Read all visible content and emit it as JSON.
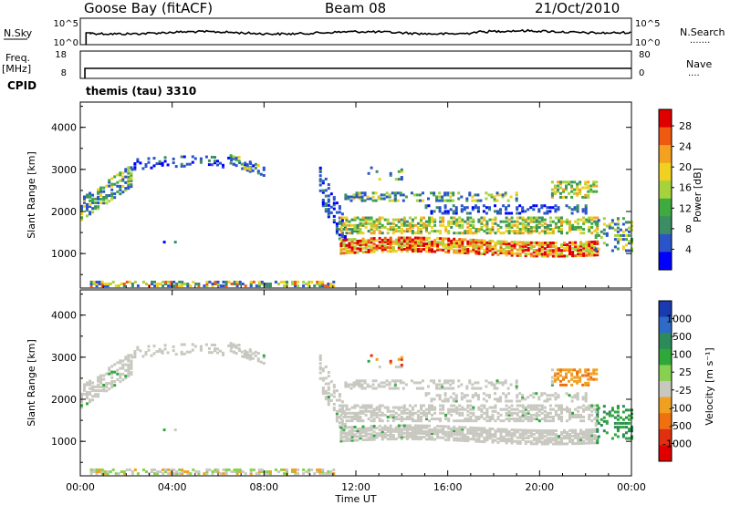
{
  "header": {
    "station": "Goose Bay (fitACF)",
    "beam": "Beam 08",
    "date": "21/Oct/2010"
  },
  "noise_panel": {
    "left_label": "N.Sky",
    "right_label": "N.Search",
    "right_dots": "·······",
    "tick_top": "10^5",
    "tick_bottom": "10^0"
  },
  "freq_panel": {
    "left_label_1": "Freq.",
    "left_label_2": "[MHz]",
    "right_label": "Nave",
    "right_dots": "····",
    "left_ticks": [
      "18",
      "8"
    ],
    "right_ticks": [
      "80",
      "0"
    ],
    "cpid_label": "CPID",
    "cpid_value": "themis (tau) 3310"
  },
  "chart_data": [
    {
      "type": "heatmap",
      "name": "power",
      "ylabel": "Slant Range [km]",
      "ylim": [
        180,
        4600
      ],
      "y_ticks": [
        "1000",
        "2000",
        "3000",
        "4000"
      ],
      "colorbar": {
        "label": "Power [dB]",
        "ticks": [
          "4",
          "8",
          "12",
          "16",
          "20",
          "24",
          "28"
        ],
        "range": [
          0,
          30
        ],
        "colors": [
          "#0000ff",
          "#2b54c8",
          "#3c8c64",
          "#3faa3f",
          "#a6d23c",
          "#f0d020",
          "#f4a020",
          "#f05a10",
          "#e00000"
        ]
      }
    },
    {
      "type": "heatmap",
      "name": "velocity",
      "ylabel": "Slant Range [km]",
      "ylim": [
        180,
        4600
      ],
      "y_ticks": [
        "1000",
        "2000",
        "3000",
        "4000"
      ],
      "colorbar": {
        "label": "Velocity [m s⁻¹]",
        "ticks": [
          "1000",
          "500",
          "100",
          "25",
          "-25",
          "-100",
          "-500",
          "-1000"
        ],
        "colors": [
          "#1a3ab0",
          "#2e6ac8",
          "#2d8a5a",
          "#2fa83a",
          "#88d050",
          "#c8c8c0",
          "#f0a020",
          "#f07010",
          "#e03010",
          "#e00000"
        ]
      }
    }
  ],
  "time_axis": {
    "label": "Time UT",
    "ticks": [
      "00:00",
      "04:00",
      "08:00",
      "12:00",
      "16:00",
      "20:00",
      "00:00"
    ],
    "range_hours": [
      0,
      24
    ]
  }
}
